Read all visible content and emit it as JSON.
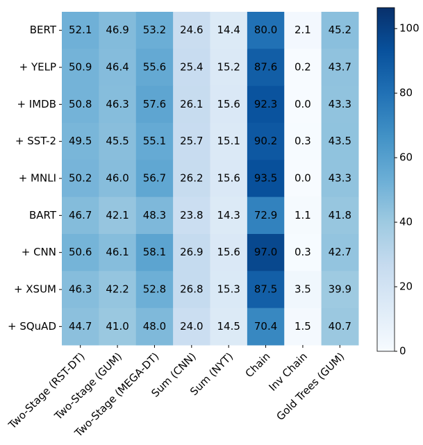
{
  "chart_data": {
    "type": "heatmap",
    "rows": [
      "BERT",
      "+ YELP",
      "+ IMDB",
      "+ SST-2",
      "+ MNLI",
      "BART",
      "+ CNN",
      "+ XSUM",
      "+ SQuAD"
    ],
    "columns": [
      "Two-Stage (RST-DT)",
      "Two-Stage (GUM)",
      "Two-Stage (MEGA-DT)",
      "Sum (CNN)",
      "Sum (NYT)",
      "Chain",
      "Inv Chain",
      "Gold Trees (GUM)"
    ],
    "values": [
      [
        52.1,
        46.9,
        53.2,
        24.6,
        14.4,
        80.0,
        2.1,
        45.2
      ],
      [
        50.9,
        46.4,
        55.6,
        25.4,
        15.2,
        87.6,
        0.2,
        43.7
      ],
      [
        50.8,
        46.3,
        57.6,
        26.1,
        15.6,
        92.3,
        0.0,
        43.3
      ],
      [
        49.5,
        45.5,
        55.1,
        25.7,
        15.1,
        90.2,
        0.3,
        43.5
      ],
      [
        50.2,
        46.0,
        56.7,
        26.2,
        15.6,
        93.5,
        0.0,
        43.3
      ],
      [
        46.7,
        42.1,
        48.3,
        23.8,
        14.3,
        72.9,
        1.1,
        41.8
      ],
      [
        50.6,
        46.1,
        58.1,
        26.9,
        15.6,
        97.0,
        0.3,
        42.7
      ],
      [
        46.3,
        42.2,
        52.8,
        26.8,
        15.3,
        87.5,
        3.5,
        39.9
      ],
      [
        44.7,
        41.0,
        48.0,
        24.0,
        14.5,
        70.4,
        1.5,
        40.7
      ]
    ],
    "value_labels": [
      [
        "52.1",
        "46.9",
        "53.2",
        "24.6",
        "14.4",
        "80.0",
        "2.1",
        "45.2"
      ],
      [
        "50.9",
        "46.4",
        "55.6",
        "25.4",
        "15.2",
        "87.6",
        "0.2",
        "43.7"
      ],
      [
        "50.8",
        "46.3",
        "57.6",
        "26.1",
        "15.6",
        "92.3",
        "0.0",
        "43.3"
      ],
      [
        "49.5",
        "45.5",
        "55.1",
        "25.7",
        "15.1",
        "90.2",
        "0.3",
        "43.5"
      ],
      [
        "50.2",
        "46.0",
        "56.7",
        "26.2",
        "15.6",
        "93.5",
        "0.0",
        "43.3"
      ],
      [
        "46.7",
        "42.1",
        "48.3",
        "23.8",
        "14.3",
        "72.9",
        "1.1",
        "41.8"
      ],
      [
        "50.6",
        "46.1",
        "58.1",
        "26.9",
        "15.6",
        "97.0",
        "0.3",
        "42.7"
      ],
      [
        "46.3",
        "42.2",
        "52.8",
        "26.8",
        "15.3",
        "87.5",
        "3.5",
        "39.9"
      ],
      [
        "44.7",
        "41.0",
        "48.0",
        "24.0",
        "14.5",
        "70.4",
        "1.5",
        "40.7"
      ]
    ],
    "colormap": [
      "#f7fbff",
      "#deebf7",
      "#c6dbef",
      "#9ecae1",
      "#6baed6",
      "#4292c6",
      "#2171b5",
      "#08519c",
      "#08306b"
    ],
    "zlim": [
      0,
      106.5
    ],
    "zticks": [
      0,
      20,
      40,
      60,
      80,
      100
    ]
  }
}
